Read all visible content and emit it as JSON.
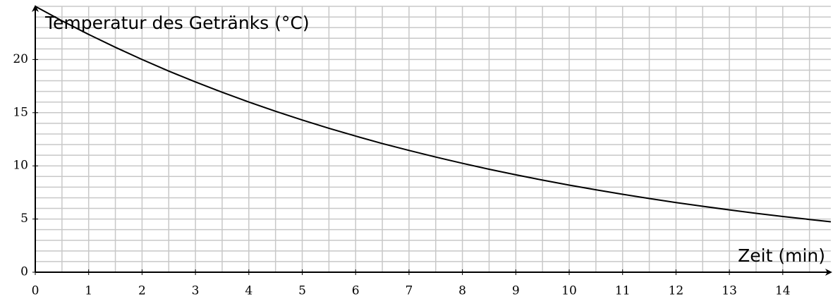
{
  "chart_data": {
    "type": "line",
    "y_axis_label": "Temperatur des Getränks (°C)",
    "x_axis_label": "Zeit (min)",
    "x": [
      0,
      0.5,
      1,
      1.5,
      2,
      2.5,
      3,
      3.5,
      4,
      4.5,
      5,
      5.5,
      6,
      6.5,
      7,
      7.5,
      8,
      8.5,
      9,
      9.5,
      10,
      10.5,
      11,
      11.5,
      12,
      12.5,
      13,
      13.5,
      14,
      14.5,
      14.9
    ],
    "series": [
      {
        "color": "#000000",
        "values": [
          25,
          23.64,
          22.36,
          21.15,
          20,
          18.91,
          17.89,
          16.92,
          16,
          15.13,
          14.31,
          13.53,
          12.8,
          12.1,
          11.45,
          10.83,
          10.24,
          9.68,
          9.16,
          8.66,
          8.19,
          7.75,
          7.33,
          6.93,
          6.55,
          6.2,
          5.86,
          5.54,
          5.24,
          4.96,
          4.74
        ]
      }
    ],
    "xlim": [
      0,
      14.9
    ],
    "ylim": [
      0,
      25
    ],
    "xticks": [
      0,
      1,
      2,
      3,
      4,
      5,
      6,
      7,
      8,
      9,
      10,
      11,
      12,
      13,
      14
    ],
    "yticks": [
      0,
      5,
      10,
      15,
      20
    ],
    "grid": true,
    "minor_grid_step": {
      "x": 0.5,
      "y": 1
    }
  }
}
